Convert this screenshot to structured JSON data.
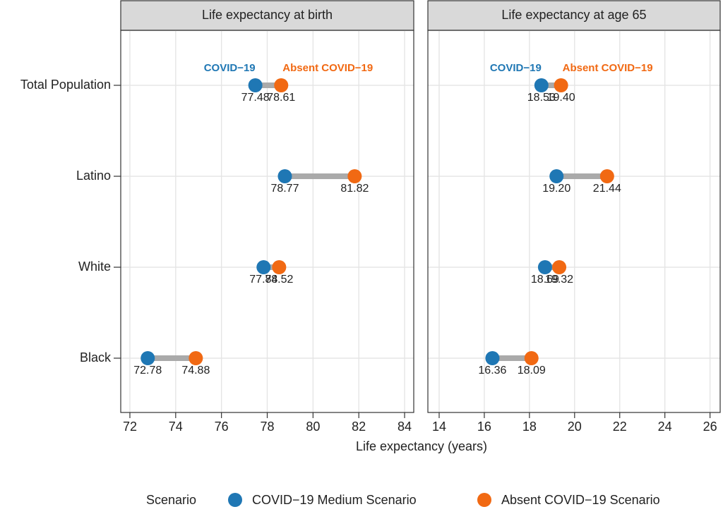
{
  "chart_data": {
    "type": "dumbbell",
    "categories": [
      "Total Population",
      "Latino",
      "White",
      "Black"
    ],
    "xlabel": "Life expectancy (years)",
    "legend_title": "Scenario",
    "legend_position": "bottom",
    "grid": true,
    "series": [
      {
        "name": "COVID−19 Medium Scenario",
        "color": "#1f77b4",
        "values": [
          [
            77.48,
            78.77,
            77.84,
            72.78
          ],
          [
            18.53,
            19.2,
            18.69,
            16.36
          ]
        ],
        "value_labels": [
          [
            "77.48",
            "78.77",
            "77.84",
            "72.78"
          ],
          [
            "18.53",
            "19.20",
            "18.69",
            "16.36"
          ]
        ]
      },
      {
        "name": "Absent COVID−19 Scenario",
        "color": "#f16913",
        "values": [
          [
            78.61,
            81.82,
            78.52,
            74.88
          ],
          [
            19.4,
            21.44,
            19.32,
            18.09
          ]
        ],
        "value_labels": [
          [
            "78.61",
            "81.82",
            "78.52",
            "74.88"
          ],
          [
            "19.40",
            "21.44",
            "19.32",
            "18.09"
          ]
        ]
      }
    ],
    "annotations": [
      "COVID−19",
      "Absent COVID−19"
    ],
    "panels": [
      {
        "title": "Life expectancy at birth",
        "xlim": [
          71.6,
          84.4
        ],
        "xticks": [
          72,
          74,
          76,
          78,
          80,
          82,
          84
        ]
      },
      {
        "title": "Life expectancy at age 65",
        "xlim": [
          13.5,
          26.45
        ],
        "xticks": [
          14,
          16,
          18,
          20,
          22,
          24,
          26
        ]
      }
    ]
  }
}
